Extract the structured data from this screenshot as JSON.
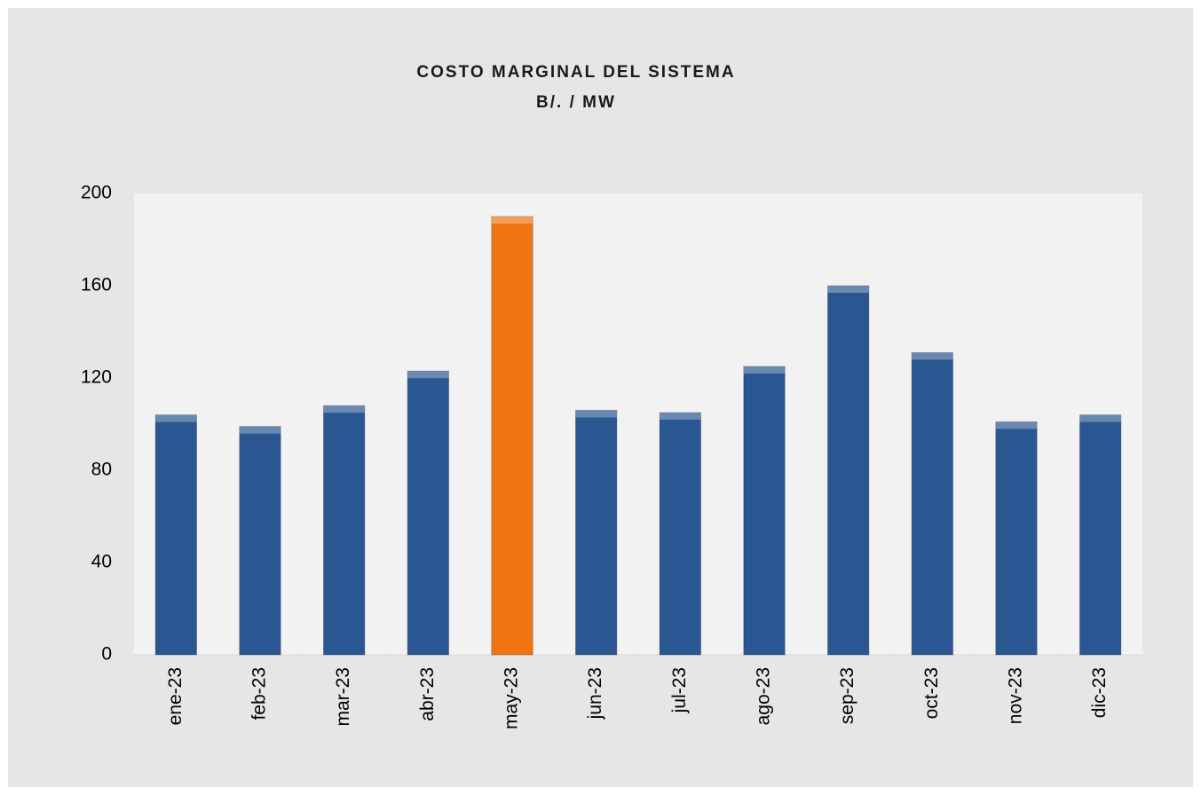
{
  "chart_data": {
    "type": "bar",
    "title": [
      "COSTO  MARGINAL  DEL  SISTEMA",
      "B/.  / MW"
    ],
    "categories": [
      "ene-23",
      "feb-23",
      "mar-23",
      "abr-23",
      "may-23",
      "jun-23",
      "jul-23",
      "ago-23",
      "sep-23",
      "oct-23",
      "nov-23",
      "dic-23"
    ],
    "values": [
      104,
      99,
      108,
      123,
      190,
      106,
      105,
      125,
      160,
      131,
      101,
      104
    ],
    "colors": [
      "#2a5791",
      "#2a5791",
      "#2a5791",
      "#2a5791",
      "#f07412",
      "#2a5791",
      "#2a5791",
      "#2a5791",
      "#2a5791",
      "#2a5791",
      "#2a5791",
      "#2a5791"
    ],
    "ylim": [
      0,
      200
    ],
    "yticks": [
      0,
      40,
      80,
      120,
      160,
      200
    ],
    "grid": false
  }
}
